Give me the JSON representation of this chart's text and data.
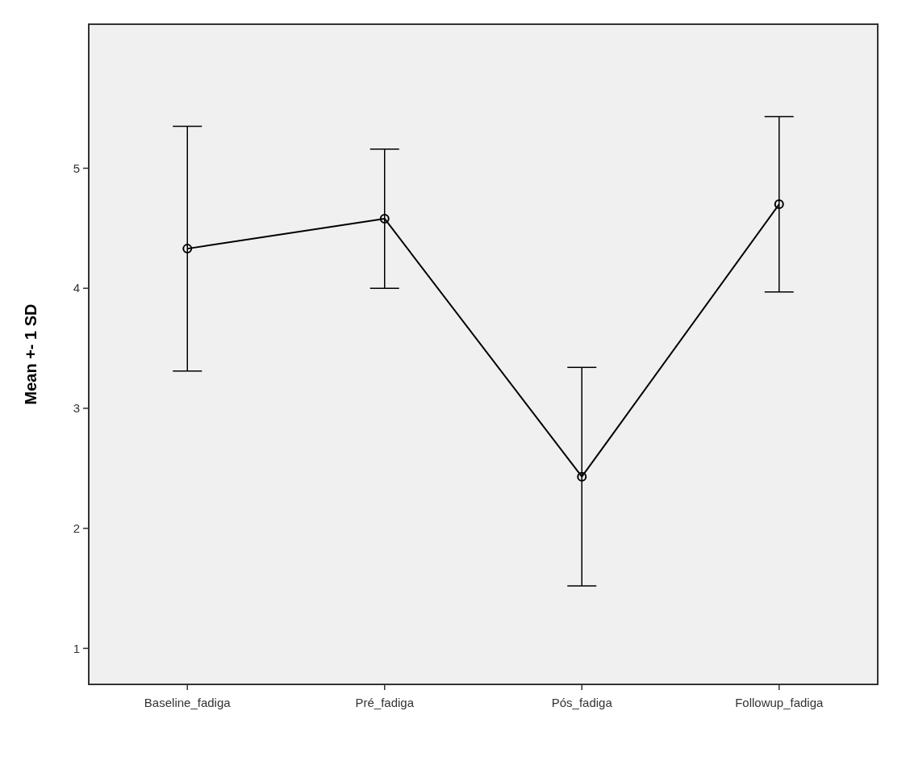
{
  "chart_data": {
    "type": "line",
    "ylabel": "Mean +- 1 SD",
    "categories": [
      "Baseline_fadiga",
      "Pré_fadiga",
      "Pós_fadiga",
      "Followup_fadiga"
    ],
    "color": "#000000",
    "values": [
      4.33,
      4.58,
      2.43,
      4.7
    ],
    "errors": [
      1.02,
      0.58,
      0.91,
      0.73
    ],
    "ylim": [
      0.7,
      6.2
    ],
    "yticks": [
      1,
      2,
      3,
      4,
      5
    ],
    "marker": "circle",
    "line_style": "solid",
    "grid": false
  }
}
